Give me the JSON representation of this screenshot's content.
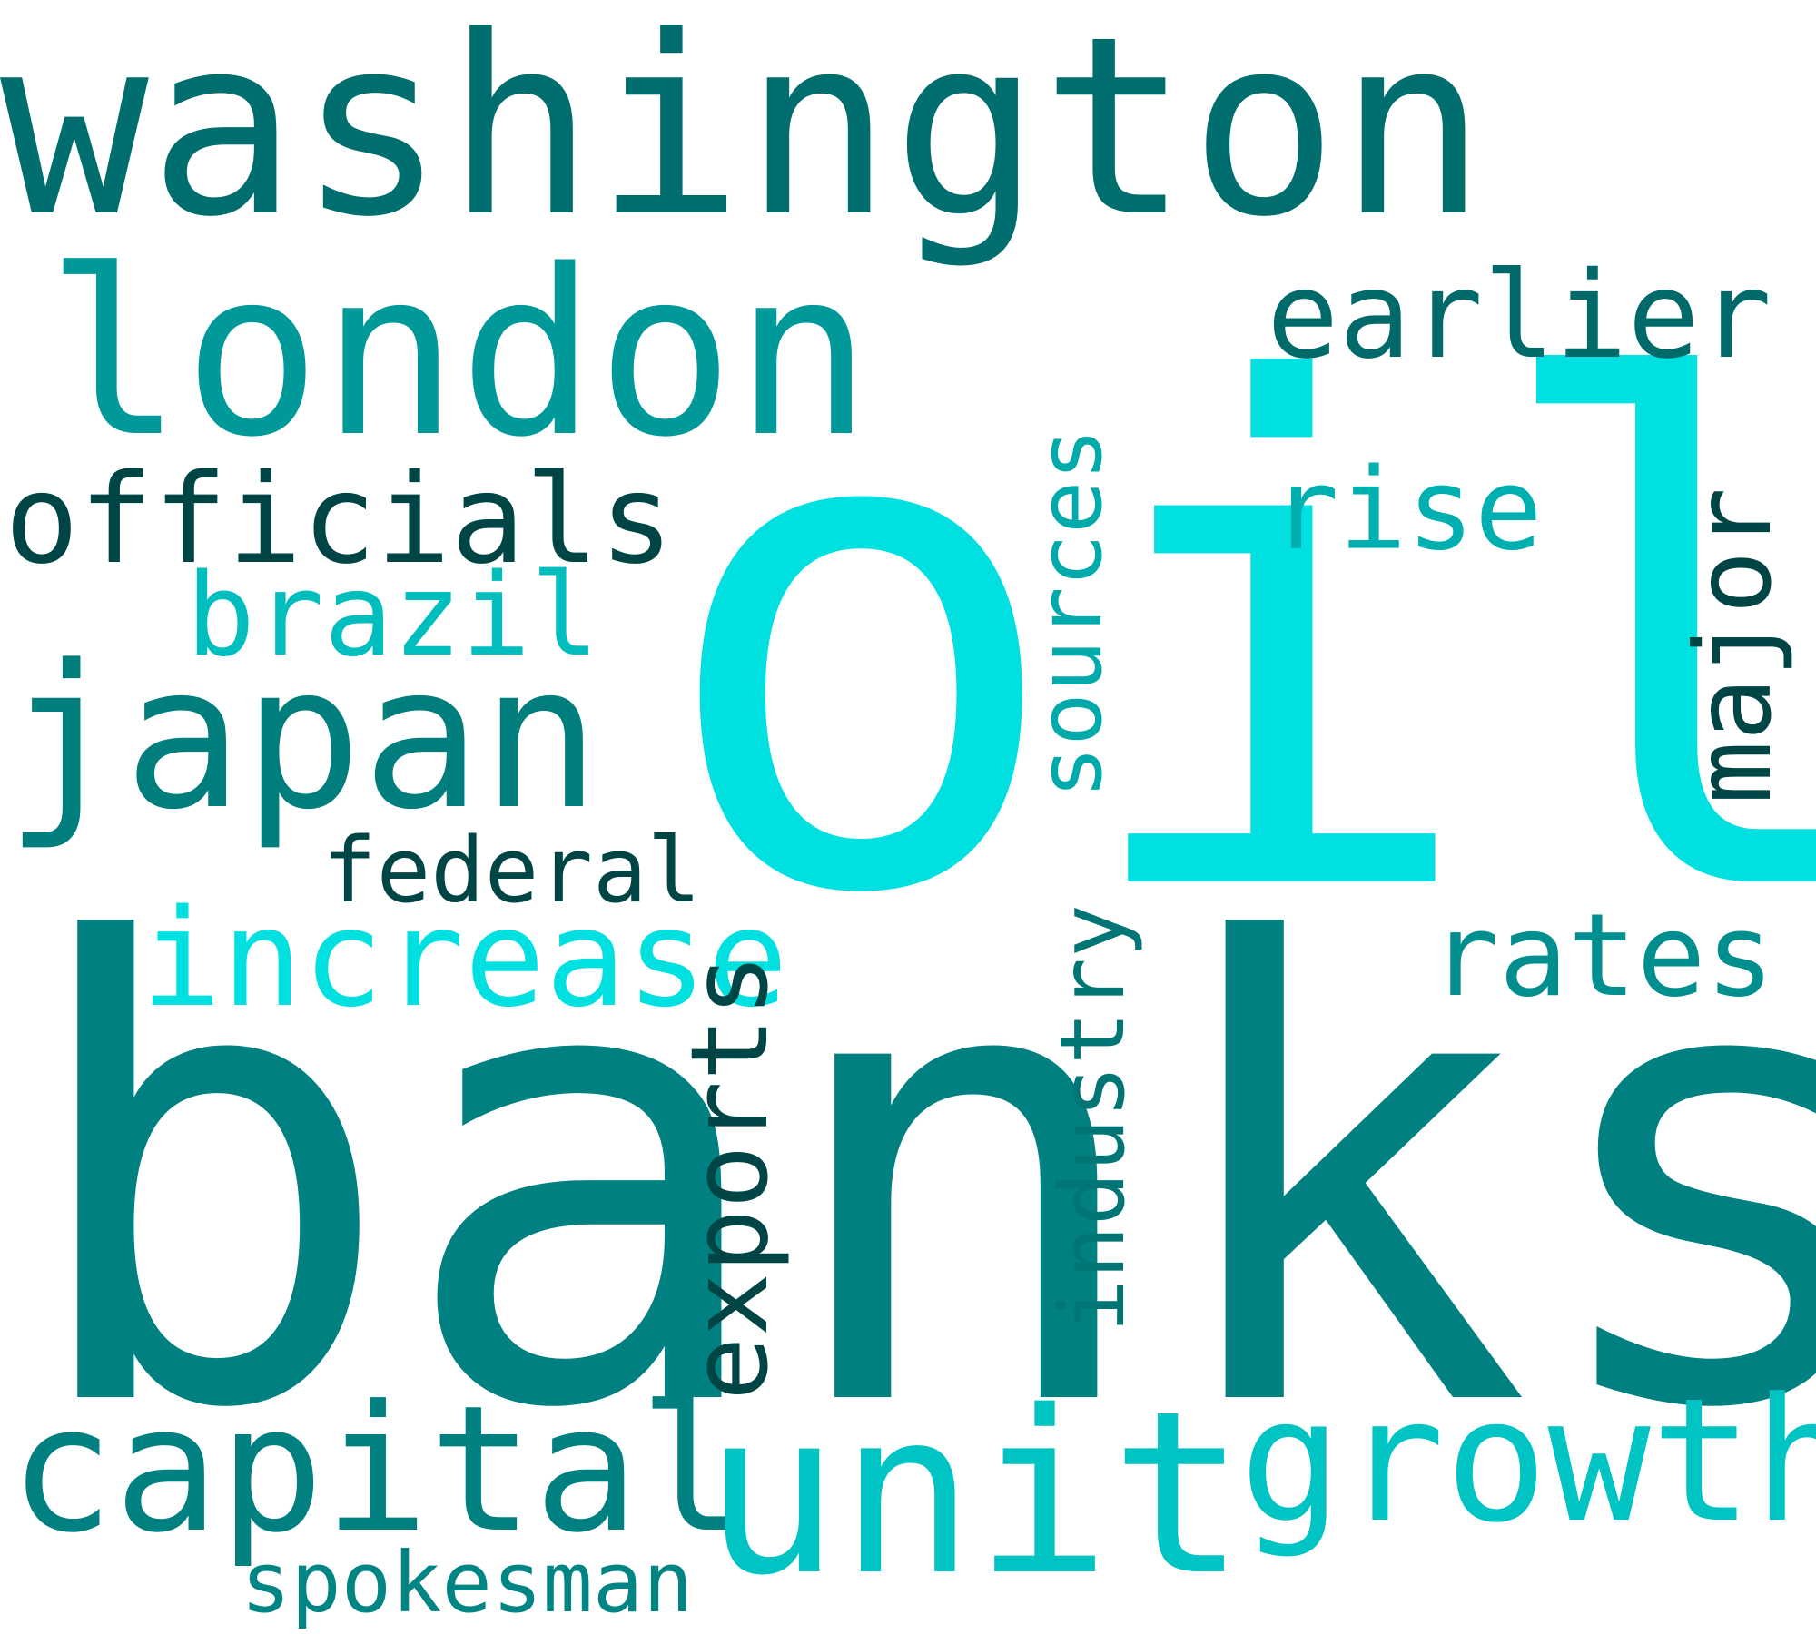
{
  "words": [
    {
      "id": "banks",
      "text": "banks",
      "color": "#008080"
    },
    {
      "id": "oil",
      "text": "oil",
      "color": "#00E0E0"
    },
    {
      "id": "washington",
      "text": "washington",
      "color": "#006E6E"
    },
    {
      "id": "london",
      "text": "london",
      "color": "#00999A"
    },
    {
      "id": "capital",
      "text": "capital",
      "color": "#008080"
    },
    {
      "id": "unit",
      "text": "unit",
      "color": "#00C4C4"
    },
    {
      "id": "growth",
      "text": "growth",
      "color": "#00C4C4"
    },
    {
      "id": "increase",
      "text": "increase",
      "color": "#00E0E0"
    },
    {
      "id": "japan",
      "text": "japan",
      "color": "#007D7D"
    },
    {
      "id": "officials",
      "text": "officials",
      "color": "#004545"
    },
    {
      "id": "brazil",
      "text": "brazil",
      "color": "#00BEBE"
    },
    {
      "id": "federal",
      "text": "federal",
      "color": "#004545"
    },
    {
      "id": "spokesman",
      "text": "spokesman",
      "color": "#008484"
    },
    {
      "id": "earlier",
      "text": "earlier",
      "color": "#006A6A"
    },
    {
      "id": "rise",
      "text": "rise",
      "color": "#00B0B0"
    },
    {
      "id": "rates",
      "text": "rates",
      "color": "#008E8E"
    },
    {
      "id": "major",
      "text": "major",
      "color": "#004545"
    },
    {
      "id": "sources",
      "text": "sources",
      "color": "#00AAAA"
    },
    {
      "id": "exports",
      "text": "exports",
      "color": "#004545"
    },
    {
      "id": "industry",
      "text": "industry",
      "color": "#007575"
    }
  ]
}
